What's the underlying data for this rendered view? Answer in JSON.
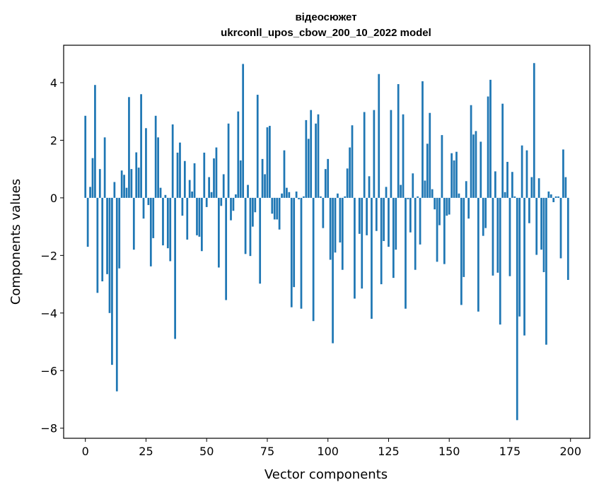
{
  "chart_data": {
    "type": "bar",
    "title_line1": "відеосюжет",
    "title_line2": "ukrconll_upos_cbow_200_10_2022 model",
    "xlabel": "Vector components",
    "ylabel": "Components values",
    "xlim": [
      -8.95,
      207.95
    ],
    "ylim": [
      -8.35,
      5.3
    ],
    "xticks": [
      0,
      25,
      50,
      75,
      100,
      125,
      150,
      175,
      200
    ],
    "xtick_labels": [
      "0",
      "25",
      "50",
      "75",
      "100",
      "125",
      "150",
      "175",
      "200"
    ],
    "yticks": [
      -8,
      -6,
      -4,
      -2,
      0,
      2,
      4
    ],
    "ytick_labels": [
      "−8",
      "−6",
      "−4",
      "−2",
      "0",
      "2",
      "4"
    ],
    "bar_color": "#1f77b4",
    "grid": false,
    "legend": "none",
    "values": [
      2.85,
      -1.7,
      0.38,
      1.38,
      3.92,
      -3.3,
      1.0,
      -2.9,
      2.1,
      -2.65,
      -4.0,
      -5.8,
      0.55,
      -6.72,
      -2.45,
      0.95,
      0.8,
      0.35,
      3.5,
      1.0,
      -1.8,
      1.58,
      1.05,
      3.6,
      -0.72,
      2.42,
      -0.25,
      -2.38,
      -1.4,
      2.85,
      2.1,
      0.35,
      -1.65,
      0.1,
      -1.75,
      -2.2,
      2.55,
      -4.9,
      1.57,
      1.92,
      -0.62,
      1.28,
      -1.45,
      0.62,
      0.22,
      1.2,
      -1.3,
      -1.35,
      -1.85,
      1.57,
      -0.32,
      0.72,
      0.2,
      1.37,
      1.75,
      -2.42,
      -0.28,
      0.82,
      -3.55,
      2.58,
      -0.78,
      -0.45,
      0.12,
      3.0,
      1.3,
      4.65,
      -1.95,
      0.45,
      -2.02,
      -1.0,
      -0.5,
      3.58,
      -2.98,
      1.35,
      0.82,
      2.45,
      2.5,
      -0.55,
      -0.75,
      -0.75,
      -1.1,
      0.15,
      1.65,
      0.35,
      0.2,
      -3.8,
      -3.1,
      0.22,
      -0.05,
      -3.85,
      0.05,
      2.7,
      2.05,
      3.05,
      -4.28,
      2.58,
      2.9,
      0.05,
      -1.05,
      1.0,
      1.35,
      -2.15,
      -5.05,
      -1.9,
      0.15,
      -1.55,
      -2.5,
      0.05,
      1.02,
      1.75,
      2.52,
      -3.5,
      0.0,
      -1.25,
      -3.15,
      2.98,
      -1.3,
      0.75,
      -4.2,
      3.05,
      -1.15,
      4.3,
      -3.0,
      -1.5,
      0.38,
      -1.7,
      3.05,
      -2.78,
      -1.8,
      3.95,
      0.45,
      2.9,
      -3.85,
      -0.05,
      -1.2,
      0.85,
      -2.5,
      0.05,
      -1.62,
      4.05,
      0.6,
      1.88,
      2.95,
      0.3,
      -0.4,
      -2.22,
      -0.95,
      2.18,
      -2.3,
      -0.62,
      -0.58,
      1.55,
      1.3,
      1.6,
      0.15,
      -3.72,
      -2.75,
      0.58,
      -0.72,
      3.22,
      2.2,
      2.32,
      -3.95,
      1.95,
      -1.32,
      -1.05,
      3.52,
      4.1,
      -2.7,
      0.92,
      -2.6,
      -4.4,
      3.27,
      0.2,
      1.25,
      -2.72,
      0.9,
      0.05,
      -7.72,
      -4.12,
      1.82,
      -4.78,
      1.65,
      -0.88,
      0.72,
      4.68,
      -1.98,
      0.68,
      -1.8,
      -2.58,
      -5.1,
      0.22,
      0.12,
      -0.15,
      0.05,
      0.05,
      -2.1,
      1.68,
      0.72,
      -2.85
    ]
  }
}
